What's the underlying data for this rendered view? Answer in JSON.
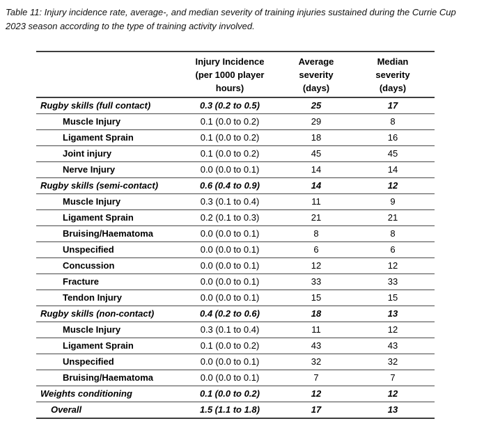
{
  "caption": "Table 11: Injury incidence rate, average-, and median severity of training injuries sustained during the Currie Cup 2023 season according to the type of training activity involved.",
  "colors": {
    "background": "#ffffff",
    "text": "#000000",
    "thick_border": "#3d3d3d",
    "row_border": "#474747"
  },
  "table": {
    "headers": {
      "label": "",
      "incidence": [
        "Injury Incidence",
        "(per 1000 player",
        "hours)"
      ],
      "average": [
        "Average",
        "severity",
        "(days)"
      ],
      "median": [
        "Median",
        "severity",
        "(days)"
      ]
    },
    "rows": [
      {
        "label": "Rugby skills (full contact)",
        "incidence": "0.3 (0.2 to 0.5)",
        "average": "25",
        "median": "17",
        "type": "category"
      },
      {
        "label": "Muscle Injury",
        "incidence": "0.1 (0.0 to 0.2)",
        "average": "29",
        "median": "8",
        "type": "sub"
      },
      {
        "label": "Ligament Sprain",
        "incidence": "0.1 (0.0 to 0.2)",
        "average": "18",
        "median": "16",
        "type": "sub"
      },
      {
        "label": "Joint injury",
        "incidence": "0.1 (0.0 to 0.2)",
        "average": "45",
        "median": "45",
        "type": "sub"
      },
      {
        "label": "Nerve Injury",
        "incidence": "0.0 (0.0 to 0.1)",
        "average": "14",
        "median": "14",
        "type": "sub"
      },
      {
        "label": "Rugby skills (semi-contact)",
        "incidence": "0.6 (0.4 to 0.9)",
        "average": "14",
        "median": "12",
        "type": "category"
      },
      {
        "label": "Muscle Injury",
        "incidence": "0.3 (0.1 to 0.4)",
        "average": "11",
        "median": "9",
        "type": "sub"
      },
      {
        "label": "Ligament Sprain",
        "incidence": "0.2 (0.1 to 0.3)",
        "average": "21",
        "median": "21",
        "type": "sub"
      },
      {
        "label": "Bruising/Haematoma",
        "incidence": "0.0 (0.0 to 0.1)",
        "average": "8",
        "median": "8",
        "type": "sub"
      },
      {
        "label": "Unspecified",
        "incidence": "0.0 (0.0 to 0.1)",
        "average": "6",
        "median": "6",
        "type": "sub"
      },
      {
        "label": "Concussion",
        "incidence": "0.0 (0.0 to 0.1)",
        "average": "12",
        "median": "12",
        "type": "sub"
      },
      {
        "label": "Fracture",
        "incidence": "0.0 (0.0 to 0.1)",
        "average": "33",
        "median": "33",
        "type": "sub"
      },
      {
        "label": "Tendon Injury",
        "incidence": "0.0 (0.0 to 0.1)",
        "average": "15",
        "median": "15",
        "type": "sub"
      },
      {
        "label": "Rugby skills (non-contact)",
        "incidence": "0.4 (0.2 to 0.6)",
        "average": "18",
        "median": "13",
        "type": "category"
      },
      {
        "label": "Muscle Injury",
        "incidence": "0.3 (0.1 to 0.4)",
        "average": "11",
        "median": "12",
        "type": "sub"
      },
      {
        "label": "Ligament Sprain",
        "incidence": "0.1 (0.0 to 0.2)",
        "average": "43",
        "median": "43",
        "type": "sub"
      },
      {
        "label": "Unspecified",
        "incidence": "0.0 (0.0 to 0.1)",
        "average": "32",
        "median": "32",
        "type": "sub"
      },
      {
        "label": "Bruising/Haematoma",
        "incidence": "0.0 (0.0 to 0.1)",
        "average": "7",
        "median": "7",
        "type": "sub"
      },
      {
        "label": "Weights conditioning",
        "incidence": "0.1 (0.0 to 0.2)",
        "average": "12",
        "median": "12",
        "type": "category"
      },
      {
        "label": "Overall",
        "incidence": "1.5 (1.1 to 1.8)",
        "average": "17",
        "median": "13",
        "type": "total"
      }
    ]
  }
}
